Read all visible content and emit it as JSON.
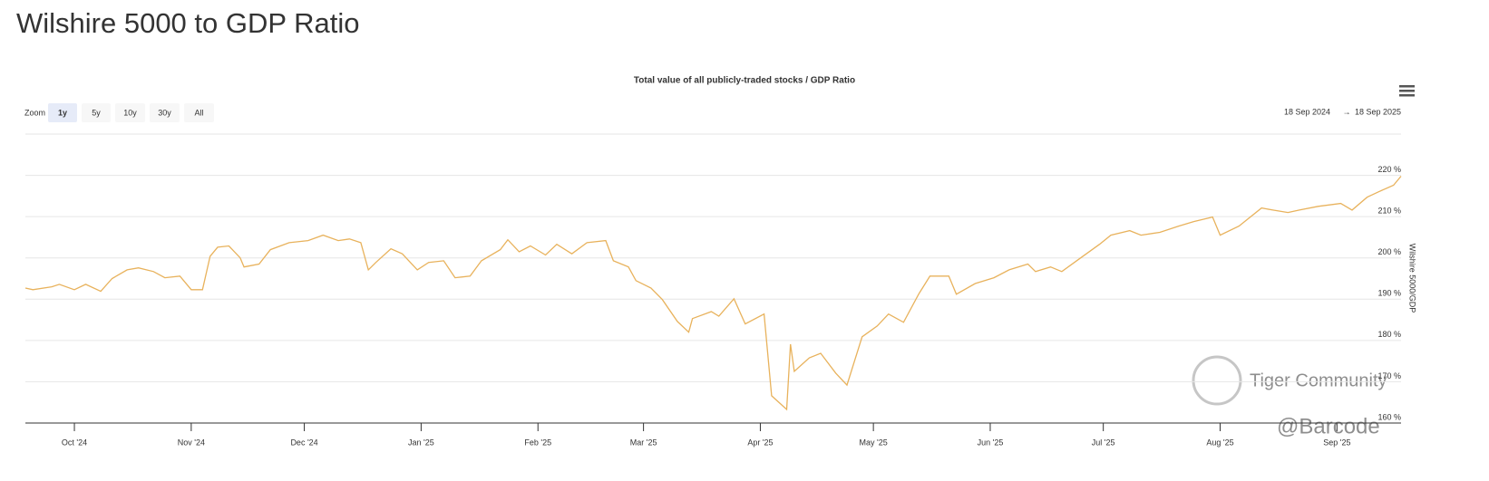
{
  "page_title": "Wilshire 5000 to GDP Ratio",
  "zoom": {
    "label": "Zoom",
    "buttons": [
      "1y",
      "5y",
      "10y",
      "30y",
      "All"
    ],
    "selected": "1y"
  },
  "range": {
    "from": "18 Sep 2024",
    "arrow": "→",
    "to": "18 Sep 2025"
  },
  "watermark": [
    "Tiger Community",
    "@Barcode"
  ],
  "chart_data": {
    "type": "line",
    "title": "Total value of all publicly-traded stocks / GDP Ratio",
    "y_label": "Wilshire 5000/GDP",
    "color": "#e8b25c",
    "grid": true,
    "xlim": [
      "2024-09-18",
      "2025-09-18"
    ],
    "xticks": [
      {
        "value": "2024-10-01",
        "label": "Oct '24"
      },
      {
        "value": "2024-11-01",
        "label": "Nov '24"
      },
      {
        "value": "2024-12-01",
        "label": "Dec '24"
      },
      {
        "value": "2025-01-01",
        "label": "Jan '25"
      },
      {
        "value": "2025-02-01",
        "label": "Feb '25"
      },
      {
        "value": "2025-03-01",
        "label": "Mar '25"
      },
      {
        "value": "2025-04-01",
        "label": "Apr '25"
      },
      {
        "value": "2025-05-01",
        "label": "May '25"
      },
      {
        "value": "2025-06-01",
        "label": "Jun '25"
      },
      {
        "value": "2025-07-01",
        "label": "Jul '25"
      },
      {
        "value": "2025-08-01",
        "label": "Aug '25"
      },
      {
        "value": "2025-09-01",
        "label": "Sep '25"
      }
    ],
    "ylim": [
      160,
      230
    ],
    "yticks": [
      {
        "value": 160,
        "label": "160 %"
      },
      {
        "value": 170,
        "label": "170 %"
      },
      {
        "value": 180,
        "label": "180 %"
      },
      {
        "value": 190,
        "label": "190 %"
      },
      {
        "value": 200,
        "label": "200 %"
      },
      {
        "value": 210,
        "label": "210 %"
      },
      {
        "value": 220,
        "label": "220 %"
      }
    ],
    "x": [
      "2024-09-18",
      "2024-09-20",
      "2024-09-25",
      "2024-09-27",
      "2024-10-01",
      "2024-10-04",
      "2024-10-08",
      "2024-10-11",
      "2024-10-15",
      "2024-10-18",
      "2024-10-22",
      "2024-10-25",
      "2024-10-29",
      "2024-11-01",
      "2024-11-04",
      "2024-11-06",
      "2024-11-08",
      "2024-11-11",
      "2024-11-14",
      "2024-11-15",
      "2024-11-19",
      "2024-11-22",
      "2024-11-27",
      "2024-12-02",
      "2024-12-06",
      "2024-12-10",
      "2024-12-13",
      "2024-12-16",
      "2024-12-18",
      "2024-12-20",
      "2024-12-24",
      "2024-12-27",
      "2024-12-31",
      "2025-01-03",
      "2025-01-07",
      "2025-01-10",
      "2025-01-14",
      "2025-01-17",
      "2025-01-22",
      "2025-01-24",
      "2025-01-27",
      "2025-01-30",
      "2025-02-03",
      "2025-02-06",
      "2025-02-10",
      "2025-02-14",
      "2025-02-19",
      "2025-02-21",
      "2025-02-25",
      "2025-02-27",
      "2025-03-03",
      "2025-03-06",
      "2025-03-10",
      "2025-03-13",
      "2025-03-14",
      "2025-03-19",
      "2025-03-21",
      "2025-03-25",
      "2025-03-28",
      "2025-04-02",
      "2025-04-04",
      "2025-04-08",
      "2025-04-09",
      "2025-04-10",
      "2025-04-14",
      "2025-04-17",
      "2025-04-21",
      "2025-04-24",
      "2025-04-28",
      "2025-05-02",
      "2025-05-05",
      "2025-05-09",
      "2025-05-13",
      "2025-05-16",
      "2025-05-21",
      "2025-05-23",
      "2025-05-28",
      "2025-06-02",
      "2025-06-06",
      "2025-06-11",
      "2025-06-13",
      "2025-06-17",
      "2025-06-20",
      "2025-06-25",
      "2025-06-30",
      "2025-07-03",
      "2025-07-08",
      "2025-07-11",
      "2025-07-16",
      "2025-07-21",
      "2025-07-25",
      "2025-07-30",
      "2025-08-01",
      "2025-08-06",
      "2025-08-12",
      "2025-08-15",
      "2025-08-19",
      "2025-08-22",
      "2025-08-27",
      "2025-09-02",
      "2025-09-05",
      "2025-09-09",
      "2025-09-12",
      "2025-09-16",
      "2025-09-18"
    ],
    "values": [
      192.7,
      192.3,
      193,
      193.6,
      192.3,
      193.6,
      191.9,
      195,
      197.1,
      197.6,
      196.7,
      195.2,
      195.6,
      192.3,
      192.3,
      200.4,
      202.6,
      202.9,
      200,
      197.8,
      198.5,
      202,
      203.7,
      204.2,
      205.5,
      204.2,
      204.6,
      203.7,
      197.1,
      198.9,
      202.2,
      201,
      197.1,
      198.9,
      199.3,
      195.2,
      195.6,
      199.3,
      202,
      204.4,
      201.5,
      202.9,
      200.7,
      203.3,
      201,
      203.7,
      204.2,
      199.3,
      197.8,
      194.5,
      192.7,
      189.9,
      184.6,
      182,
      185.3,
      187,
      185.9,
      190.1,
      184,
      186.4,
      166.6,
      163.3,
      179.1,
      172.5,
      175.8,
      176.9,
      172.1,
      169.2,
      180.9,
      183.5,
      186.4,
      184.4,
      191.2,
      195.6,
      195.6,
      191.2,
      193.8,
      195.2,
      197.1,
      198.5,
      196.7,
      197.8,
      196.7,
      200,
      203.3,
      205.5,
      206.6,
      205.5,
      206.2,
      207.7,
      208.8,
      209.9,
      205.5,
      207.7,
      212.1,
      211.6,
      211,
      211.6,
      212.5,
      213.2,
      211.6,
      214.7,
      216,
      217.6,
      219.8
    ]
  }
}
